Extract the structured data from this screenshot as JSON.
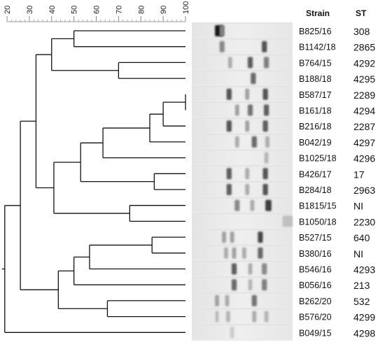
{
  "scale": {
    "ticks": [
      20,
      30,
      40,
      50,
      60,
      70,
      80,
      90,
      100
    ]
  },
  "headers": {
    "strain": "Strain",
    "st": "ST"
  },
  "rows": [
    {
      "strain": "B825/16",
      "st": "308",
      "bands": [
        {
          "pos": 0.27,
          "i": 1.0,
          "w": 0.08
        },
        {
          "pos": 0.3,
          "i": 0.5,
          "w": 0.05
        }
      ]
    },
    {
      "strain": "B1142/18",
      "st": "2865",
      "bands": [
        {
          "pos": 0.3,
          "i": 0.45,
          "w": 0.05
        },
        {
          "pos": 0.72,
          "i": 0.7,
          "w": 0.05
        }
      ]
    },
    {
      "strain": "B764/15",
      "st": "4292",
      "bands": [
        {
          "pos": 0.38,
          "i": 0.3,
          "w": 0.04
        },
        {
          "pos": 0.58,
          "i": 0.65,
          "w": 0.05
        },
        {
          "pos": 0.74,
          "i": 0.5,
          "w": 0.05
        }
      ]
    },
    {
      "strain": "B188/18",
      "st": "4295",
      "bands": [
        {
          "pos": 0.61,
          "i": 0.6,
          "w": 0.05
        }
      ]
    },
    {
      "strain": "B587/17",
      "st": "2289",
      "bands": [
        {
          "pos": 0.37,
          "i": 0.7,
          "w": 0.05
        },
        {
          "pos": 0.55,
          "i": 0.35,
          "w": 0.04
        },
        {
          "pos": 0.73,
          "i": 0.7,
          "w": 0.05
        }
      ]
    },
    {
      "strain": "B161/18",
      "st": "4294",
      "bands": [
        {
          "pos": 0.45,
          "i": 0.35,
          "w": 0.04
        },
        {
          "pos": 0.58,
          "i": 0.55,
          "w": 0.05
        },
        {
          "pos": 0.74,
          "i": 0.65,
          "w": 0.05
        }
      ]
    },
    {
      "strain": "B216/18",
      "st": "2287",
      "bands": [
        {
          "pos": 0.37,
          "i": 0.7,
          "w": 0.05
        },
        {
          "pos": 0.55,
          "i": 0.35,
          "w": 0.04
        },
        {
          "pos": 0.73,
          "i": 0.65,
          "w": 0.05
        }
      ]
    },
    {
      "strain": "B042/19",
      "st": "4297",
      "bands": [
        {
          "pos": 0.45,
          "i": 0.3,
          "w": 0.04
        },
        {
          "pos": 0.62,
          "i": 0.6,
          "w": 0.05
        },
        {
          "pos": 0.75,
          "i": 0.3,
          "w": 0.04
        }
      ]
    },
    {
      "strain": "B1025/18",
      "st": "4296",
      "bands": [
        {
          "pos": 0.74,
          "i": 0.25,
          "w": 0.04
        }
      ]
    },
    {
      "strain": "B426/17",
      "st": "17",
      "bands": [
        {
          "pos": 0.37,
          "i": 0.65,
          "w": 0.05
        },
        {
          "pos": 0.55,
          "i": 0.3,
          "w": 0.04
        },
        {
          "pos": 0.73,
          "i": 0.7,
          "w": 0.05
        }
      ]
    },
    {
      "strain": "B284/18",
      "st": "2963",
      "bands": [
        {
          "pos": 0.37,
          "i": 0.65,
          "w": 0.05
        },
        {
          "pos": 0.55,
          "i": 0.3,
          "w": 0.04
        },
        {
          "pos": 0.73,
          "i": 0.7,
          "w": 0.05
        }
      ]
    },
    {
      "strain": "B1815/15",
      "st": "NI",
      "bands": [
        {
          "pos": 0.45,
          "i": 0.45,
          "w": 0.05
        },
        {
          "pos": 0.6,
          "i": 0.3,
          "w": 0.04
        },
        {
          "pos": 0.76,
          "i": 0.8,
          "w": 0.06
        }
      ]
    },
    {
      "strain": "B1050/18",
      "st": "2230",
      "bands": [
        {
          "pos": 0.95,
          "i": 0.2,
          "w": 0.1
        }
      ]
    },
    {
      "strain": "B527/15",
      "st": "640",
      "bands": [
        {
          "pos": 0.32,
          "i": 0.35,
          "w": 0.04
        },
        {
          "pos": 0.4,
          "i": 0.35,
          "w": 0.04
        },
        {
          "pos": 0.68,
          "i": 0.75,
          "w": 0.05
        }
      ]
    },
    {
      "strain": "B380/16",
      "st": "NI",
      "bands": [
        {
          "pos": 0.34,
          "i": 0.3,
          "w": 0.04
        },
        {
          "pos": 0.42,
          "i": 0.35,
          "w": 0.04
        },
        {
          "pos": 0.52,
          "i": 0.3,
          "w": 0.04
        },
        {
          "pos": 0.68,
          "i": 0.6,
          "w": 0.05
        }
      ]
    },
    {
      "strain": "B546/16",
      "st": "4293",
      "bands": [
        {
          "pos": 0.42,
          "i": 0.65,
          "w": 0.05
        },
        {
          "pos": 0.58,
          "i": 0.3,
          "w": 0.04
        },
        {
          "pos": 0.72,
          "i": 0.45,
          "w": 0.05
        }
      ]
    },
    {
      "strain": "B056/16",
      "st": "213",
      "bands": [
        {
          "pos": 0.42,
          "i": 0.6,
          "w": 0.05
        },
        {
          "pos": 0.58,
          "i": 0.25,
          "w": 0.04
        },
        {
          "pos": 0.72,
          "i": 0.5,
          "w": 0.05
        }
      ]
    },
    {
      "strain": "B262/20",
      "st": "532",
      "bands": [
        {
          "pos": 0.25,
          "i": 0.35,
          "w": 0.04
        },
        {
          "pos": 0.35,
          "i": 0.3,
          "w": 0.04
        },
        {
          "pos": 0.62,
          "i": 0.55,
          "w": 0.05
        }
      ]
    },
    {
      "strain": "B576/20",
      "st": "4299",
      "bands": [
        {
          "pos": 0.25,
          "i": 0.25,
          "w": 0.03
        },
        {
          "pos": 0.36,
          "i": 0.25,
          "w": 0.04
        },
        {
          "pos": 0.62,
          "i": 0.3,
          "w": 0.04
        },
        {
          "pos": 0.74,
          "i": 0.25,
          "w": 0.04
        }
      ]
    },
    {
      "strain": "B049/15",
      "st": "4298",
      "bands": [
        {
          "pos": 0.4,
          "i": 0.15,
          "w": 0.04
        }
      ]
    }
  ],
  "dendrogram": [
    {
      "x1": 50,
      "a": 0,
      "b": 1
    },
    {
      "x1": 70,
      "a": 2,
      "b": 3
    },
    {
      "x1": 100,
      "a": 4,
      "b": 5
    },
    {
      "x1": 90,
      "a": "n2",
      "b": 6
    },
    {
      "x1": 84,
      "a": "n3",
      "b": 7
    },
    {
      "x1": 63,
      "a": "n4",
      "b": 8
    },
    {
      "x1": 86,
      "a": 9,
      "b": 10
    },
    {
      "x1": 53,
      "a": "n5",
      "b": "n6"
    },
    {
      "x1": 75,
      "a": 11,
      "b": 12
    },
    {
      "x1": 41,
      "a": "n7",
      "b": "n8"
    },
    {
      "x1": 40,
      "a": "n0",
      "b": "n1"
    },
    {
      "x1": 33,
      "a": "n10",
      "b": "n9"
    },
    {
      "x1": 85,
      "a": 13,
      "b": 14
    },
    {
      "x1": 57,
      "a": "n12",
      "b": 15
    },
    {
      "x1": 50,
      "a": "n13",
      "b": 16
    },
    {
      "x1": 65,
      "a": 17,
      "b": 18
    },
    {
      "x1": 43,
      "a": "n14",
      "b": "n15"
    },
    {
      "x1": 26,
      "a": "n11",
      "b": "n16"
    },
    {
      "x1": 19,
      "a": "n17",
      "b": 19
    }
  ]
}
